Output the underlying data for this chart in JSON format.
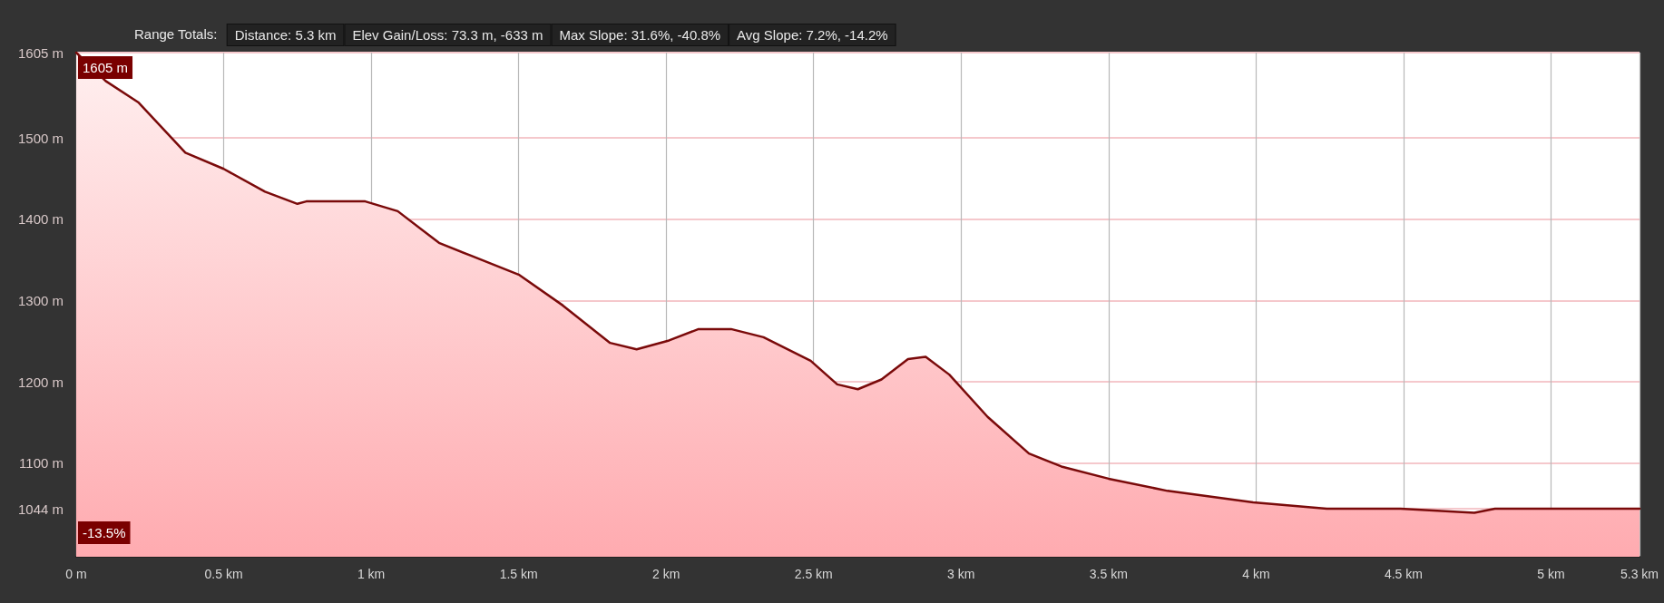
{
  "chart_data": {
    "type": "area",
    "xlim": [
      0,
      5.3
    ],
    "ylim": [
      985,
      1605
    ],
    "xticks": [
      {
        "value": 0,
        "label": "0 m"
      },
      {
        "value": 0.5,
        "label": "0.5 km"
      },
      {
        "value": 1,
        "label": "1 km"
      },
      {
        "value": 1.5,
        "label": "1.5 km"
      },
      {
        "value": 2,
        "label": "2 km"
      },
      {
        "value": 2.5,
        "label": "2.5 km"
      },
      {
        "value": 3,
        "label": "3 km"
      },
      {
        "value": 3.5,
        "label": "3.5 km"
      },
      {
        "value": 4,
        "label": "4 km"
      },
      {
        "value": 4.5,
        "label": "4.5 km"
      },
      {
        "value": 5,
        "label": "5 km"
      },
      {
        "value": 5.3,
        "label": "5.3 km"
      }
    ],
    "yticks": [
      {
        "value": 1044,
        "label": "1044 m"
      },
      {
        "value": 1100,
        "label": "1100 m"
      },
      {
        "value": 1200,
        "label": "1200 m"
      },
      {
        "value": 1300,
        "label": "1300 m"
      },
      {
        "value": 1400,
        "label": "1400 m"
      },
      {
        "value": 1500,
        "label": "1500 m"
      },
      {
        "value": 1605,
        "label": "1605 m"
      }
    ],
    "grid": true,
    "marker": "none",
    "line_style": "solid",
    "series": [
      {
        "color": "#7a0a0a",
        "x": [
          0,
          0.1,
          0.21,
          0.37,
          0.5,
          0.64,
          0.75,
          0.78,
          0.98,
          1.09,
          1.23,
          1.34,
          1.5,
          1.65,
          1.81,
          1.9,
          2.01,
          2.11,
          2.22,
          2.33,
          2.49,
          2.58,
          2.65,
          2.73,
          2.82,
          2.88,
          2.96,
          3.09,
          3.23,
          3.34,
          3.5,
          3.7,
          3.99,
          4.24,
          4.49,
          4.74,
          4.81,
          5.3
        ],
        "values": [
          1605,
          1570,
          1544,
          1482,
          1462,
          1434,
          1419,
          1422,
          1422,
          1410,
          1371,
          1355,
          1332,
          1294,
          1248,
          1240,
          1251,
          1265,
          1265,
          1255,
          1226,
          1197,
          1191,
          1203,
          1228,
          1231,
          1209,
          1157,
          1112,
          1096,
          1081,
          1066,
          1052,
          1044,
          1044,
          1039,
          1044,
          1044
        ]
      }
    ],
    "annotations": [
      "Range Totals:",
      "Distance: 5.3 km",
      "Elev Gain/Loss: 73.3 m, -633 m",
      "Max Slope: 31.6%, -40.8%",
      "Avg Slope: 7.2%, -14.2%",
      {
        "text": "1605 m",
        "x": 0,
        "y": 1605
      },
      {
        "text": "-13.5%",
        "x": 0,
        "y": 1044
      }
    ]
  }
}
